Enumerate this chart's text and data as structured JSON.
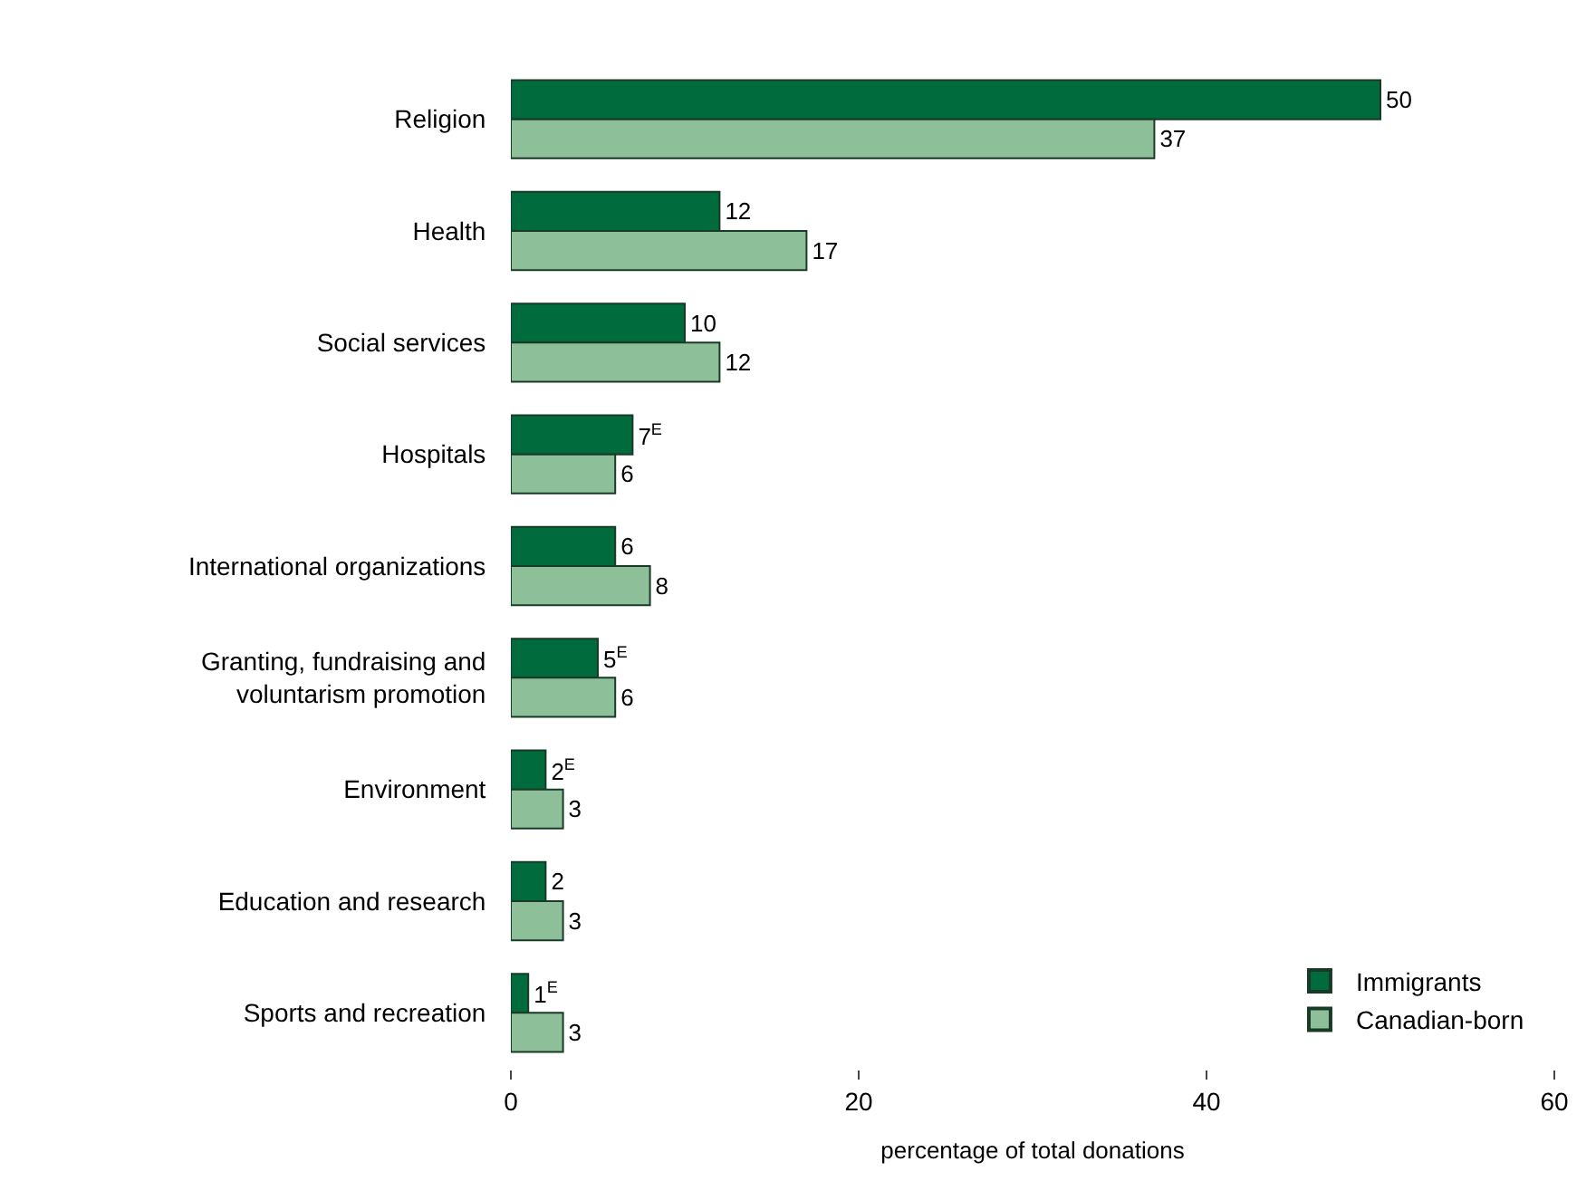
{
  "chart_data": {
    "type": "bar",
    "orientation": "horizontal",
    "xlabel": "percentage of total donations",
    "categories": [
      "Religion",
      "Health",
      "Social services",
      "Hospitals",
      "International organizations",
      "Granting, fundraising and voluntarism promotion",
      "Environment",
      "Education and research",
      "Sports and recreation"
    ],
    "series": [
      {
        "name": "Immigrants",
        "color": "#006b3c",
        "values": [
          50,
          12,
          10,
          7,
          6,
          5,
          2,
          2,
          1
        ],
        "value_labels": [
          "50",
          "12",
          "10",
          "7$^{E}$",
          "6",
          "5$^{E}$",
          "2$^{E}$",
          "2",
          "1$^{E}$"
        ]
      },
      {
        "name": "Canadian-born",
        "color": "#8dbf99",
        "values": [
          37,
          17,
          12,
          6,
          8,
          6,
          3,
          3,
          3
        ],
        "value_labels": [
          "37",
          "17",
          "12",
          "6",
          "8",
          "6",
          "3",
          "3",
          "3"
        ]
      }
    ],
    "xlim": [
      0,
      60
    ],
    "xticks": [
      0,
      20,
      40,
      60
    ],
    "legend": "bottom right"
  }
}
